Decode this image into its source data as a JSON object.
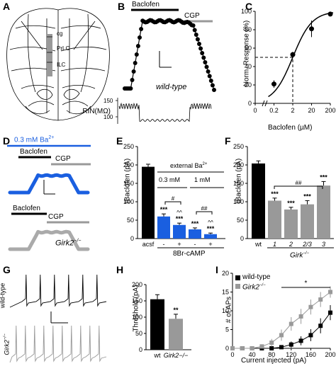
{
  "panels": {
    "A": {
      "letter": "A",
      "regions": [
        "cg",
        "PrLC",
        "ILC"
      ]
    },
    "B": {
      "letter": "B",
      "baclofen_bar": "Baclofen",
      "cgp_bar": "CGP",
      "genotype": "wild-type",
      "rin_label": "RIN(MΩ)",
      "rin_ticks": [
        "150",
        "100"
      ]
    },
    "C": {
      "letter": "C"
    },
    "D": {
      "letter": "D",
      "ba_label": "0.3 mM Ba",
      "ba_superscript": "2+",
      "baclofen_top": "Baclofen",
      "cgp_top": "CGP",
      "baclofen_bottom": "Baclofen",
      "cgp_bottom": "CGP",
      "genotype": "Girk2",
      "genotype_sup": "−/−"
    },
    "E": {
      "letter": "E",
      "external_ba": "external Ba",
      "external_ba_sup": "2+",
      "conc_low": "0.3 mM",
      "conc_high": "1 mM",
      "treatment": "8Br-cAMP",
      "sig_pair_1": "#",
      "sig_pair_2": "##"
    },
    "F": {
      "letter": "F",
      "genotype_group": "Girk",
      "genotype_group_sup": "−/−",
      "sig_group": "##"
    },
    "G": {
      "letter": "G",
      "row_wt": "wild-type",
      "row_ko": "Girk2",
      "row_ko_sup": "−/−"
    },
    "H": {
      "letter": "H"
    },
    "I": {
      "letter": "I",
      "legend_wt": "wild-type",
      "legend_ko": "Girk2",
      "legend_ko_sup": "−/−",
      "sig": "*"
    }
  },
  "colors": {
    "blue": "#1a5fe0",
    "gray": "#999999",
    "darkgray": "#555555",
    "black": "#000000"
  },
  "chart_data": [
    {
      "id": "C",
      "type": "line",
      "ylabel": "Norm. Response (%)",
      "xlabel": "Baclofen (µM)",
      "xticks": [
        "0",
        "0.2",
        "2",
        "20",
        "200"
      ],
      "yticks": [
        "0",
        "20",
        "40",
        "60",
        "80",
        "100"
      ],
      "x_scale": "log",
      "ylim": [
        0,
        100
      ],
      "series": [
        {
          "x": [
            0.2,
            2,
            20,
            200
          ],
          "y": [
            21,
            53,
            81,
            97
          ],
          "err": [
            4,
            3,
            9,
            2
          ]
        }
      ],
      "dashed_guide": {
        "x": 2,
        "y": 50
      }
    },
    {
      "id": "E",
      "type": "bar",
      "ylabel": "IBaclofen (pA)",
      "ylim": [
        0,
        250
      ],
      "yticks": [
        "0",
        "50",
        "100",
        "150",
        "200",
        "250"
      ],
      "categories": [
        "acsf",
        "-",
        "+",
        "-",
        "+"
      ],
      "values": [
        195,
        60,
        37,
        25,
        12
      ],
      "errors": [
        7,
        7,
        5,
        4,
        3
      ],
      "annotations": [
        "",
        "***",
        "***",
        "***",
        "***"
      ],
      "extra_marks": [
        "",
        "",
        "^^",
        "",
        "^^"
      ]
    },
    {
      "id": "F",
      "type": "bar",
      "ylabel": "IBaclofen (pA)",
      "ylim": [
        0,
        250
      ],
      "yticks": [
        "0",
        "50",
        "100",
        "150",
        "200",
        "250"
      ],
      "categories": [
        "wt",
        "1",
        "2",
        "2/3",
        "3"
      ],
      "values": [
        204,
        103,
        79,
        93,
        144
      ],
      "errors": [
        7,
        7,
        6,
        10,
        11
      ],
      "annotations": [
        "",
        "***",
        "***",
        "***",
        "***"
      ]
    },
    {
      "id": "H",
      "type": "bar",
      "ylabel": "Threshold (pA)",
      "ylim": [
        0,
        200
      ],
      "yticks": [
        "0",
        "50",
        "100",
        "150",
        "200"
      ],
      "categories": [
        "wt",
        "Girk2−/−"
      ],
      "values": [
        155,
        95
      ],
      "errors": [
        14,
        14
      ],
      "annotations": [
        "",
        "**"
      ]
    },
    {
      "id": "I",
      "type": "line",
      "ylabel": "# of APs",
      "xlabel": "Current injected (pA)",
      "xticks": [
        "0",
        "40",
        "80",
        "120",
        "160",
        "200"
      ],
      "yticks": [
        "0",
        "5",
        "10",
        "15",
        "20"
      ],
      "xlim": [
        0,
        200
      ],
      "ylim": [
        0,
        20
      ],
      "series": [
        {
          "name": "wild-type",
          "x": [
            0,
            20,
            40,
            60,
            80,
            100,
            120,
            140,
            160,
            180,
            200
          ],
          "y": [
            0,
            0,
            0,
            0,
            0,
            0.3,
            1,
            2,
            3.5,
            6,
            9.5
          ],
          "err": [
            0,
            0,
            0,
            0,
            0,
            0.3,
            0.8,
            1.2,
            1.6,
            2,
            2
          ]
        },
        {
          "name": "Girk2−/−",
          "x": [
            0,
            20,
            40,
            60,
            80,
            100,
            120,
            140,
            160,
            180,
            200
          ],
          "y": [
            0,
            0,
            0,
            0.5,
            1.5,
            3.5,
            6.5,
            8.5,
            11,
            13,
            15
          ],
          "err": [
            0,
            0,
            0,
            0.5,
            1,
            1.5,
            1.8,
            2,
            2,
            2,
            1.5
          ]
        }
      ]
    }
  ]
}
